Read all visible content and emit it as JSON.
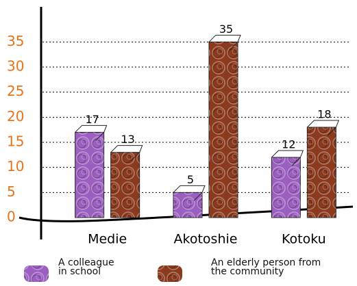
{
  "chart_data": {
    "type": "bar",
    "categories": [
      "Medie",
      "Akotoshie",
      "Kotoku"
    ],
    "series": [
      {
        "name": "A colleague in school",
        "color": "#9b5fc0",
        "values": [
          17,
          5,
          12
        ]
      },
      {
        "name": "An elderly person from the community",
        "color": "#8b3a1e",
        "values": [
          13,
          35,
          18
        ]
      }
    ],
    "ylim": [
      0,
      42
    ],
    "yticks": [
      0,
      5,
      10,
      15,
      20,
      25,
      30,
      35
    ],
    "grid": true,
    "tick_color": "#e8731a"
  }
}
